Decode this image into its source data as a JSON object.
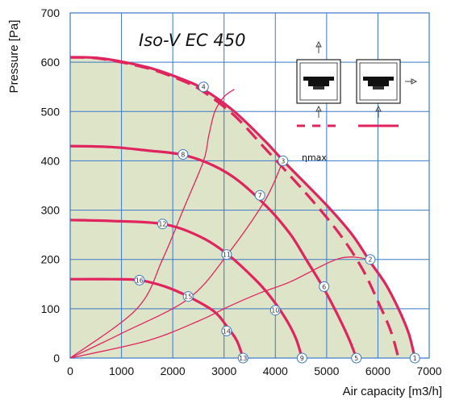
{
  "chart_data": {
    "type": "line",
    "title": "Iso-V EC 450",
    "xlabel": "Air capacity [m3/h]",
    "ylabel": "Pressure [Pa]",
    "xlim": [
      0,
      7000
    ],
    "ylim": [
      0,
      700
    ],
    "xticks": [
      0,
      1000,
      2000,
      3000,
      4000,
      5000,
      6000,
      7000
    ],
    "yticks": [
      0,
      100,
      200,
      300,
      400,
      500,
      600,
      700
    ],
    "grid": true,
    "colors": {
      "curve": "#e0245e",
      "area_fill": "#dee4c8",
      "grid": "#3a78c8",
      "point_fill": "#ffffff",
      "point_stroke": "#3a78c8"
    },
    "annotations": {
      "eta_max": "ηmax"
    },
    "fan_curves": [
      {
        "style": "solid",
        "points": [
          [
            0,
            610
          ],
          [
            600,
            608
          ],
          [
            1500,
            590
          ],
          [
            2200,
            565
          ],
          [
            2600,
            545
          ],
          [
            3200,
            500
          ],
          [
            3800,
            440
          ],
          [
            4200,
            395
          ],
          [
            5000,
            310
          ],
          [
            5500,
            250
          ],
          [
            5850,
            195
          ],
          [
            6150,
            150
          ],
          [
            6400,
            100
          ],
          [
            6600,
            50
          ],
          [
            6720,
            0
          ]
        ]
      },
      {
        "style": "dashed",
        "points": [
          [
            0,
            610
          ],
          [
            600,
            607
          ],
          [
            1500,
            588
          ],
          [
            2200,
            562
          ],
          [
            2600,
            540
          ],
          [
            3200,
            492
          ],
          [
            3800,
            425
          ],
          [
            4200,
            380
          ],
          [
            4800,
            310
          ],
          [
            5300,
            245
          ],
          [
            5700,
            180
          ],
          [
            6000,
            115
          ],
          [
            6250,
            55
          ],
          [
            6400,
            0
          ]
        ]
      },
      {
        "style": "solid",
        "points": [
          [
            0,
            430
          ],
          [
            800,
            428
          ],
          [
            1500,
            421
          ],
          [
            2200,
            412
          ],
          [
            2800,
            390
          ],
          [
            3300,
            358
          ],
          [
            3900,
            300
          ],
          [
            4300,
            250
          ],
          [
            4600,
            200
          ],
          [
            4950,
            140
          ],
          [
            5250,
            80
          ],
          [
            5450,
            35
          ],
          [
            5580,
            0
          ]
        ]
      },
      {
        "style": "solid",
        "points": [
          [
            0,
            280
          ],
          [
            800,
            278
          ],
          [
            1800,
            272
          ],
          [
            2500,
            248
          ],
          [
            3050,
            212
          ],
          [
            3600,
            160
          ],
          [
            3900,
            125
          ],
          [
            4200,
            80
          ],
          [
            4400,
            40
          ],
          [
            4520,
            0
          ]
        ]
      },
      {
        "style": "solid",
        "points": [
          [
            0,
            160
          ],
          [
            800,
            160
          ],
          [
            1350,
            158
          ],
          [
            1850,
            145
          ],
          [
            2300,
            125
          ],
          [
            2800,
            95
          ],
          [
            3050,
            65
          ],
          [
            3250,
            35
          ],
          [
            3370,
            0
          ]
        ]
      }
    ],
    "system_curves": [
      {
        "points": [
          [
            0,
            0
          ],
          [
            1300,
            100
          ],
          [
            1800,
            200
          ],
          [
            2200,
            300
          ],
          [
            2600,
            400
          ],
          [
            2700,
            450
          ],
          [
            2820,
            500
          ],
          [
            3000,
            530
          ],
          [
            3200,
            545
          ]
        ]
      },
      {
        "points": [
          [
            0,
            0
          ],
          [
            1000,
            50
          ],
          [
            2300,
            120
          ],
          [
            3080,
            212
          ],
          [
            3800,
            320
          ],
          [
            4150,
            400
          ]
        ]
      },
      {
        "points": [
          [
            0,
            0
          ],
          [
            1500,
            35
          ],
          [
            2500,
            75
          ],
          [
            3100,
            105
          ],
          [
            3700,
            132
          ],
          [
            4300,
            155
          ],
          [
            5250,
            202
          ],
          [
            5850,
            200
          ]
        ]
      }
    ],
    "points": [
      {
        "label": "1",
        "x": 6720,
        "y": 0
      },
      {
        "label": "2",
        "x": 5850,
        "y": 200
      },
      {
        "label": "3",
        "x": 4150,
        "y": 400
      },
      {
        "label": "4",
        "x": 2600,
        "y": 550
      },
      {
        "label": "5",
        "x": 5580,
        "y": 0
      },
      {
        "label": "6",
        "x": 4950,
        "y": 145
      },
      {
        "label": "7",
        "x": 3700,
        "y": 330
      },
      {
        "label": "8",
        "x": 2200,
        "y": 413
      },
      {
        "label": "9",
        "x": 4520,
        "y": 0
      },
      {
        "label": "10",
        "x": 4000,
        "y": 97
      },
      {
        "label": "11",
        "x": 3050,
        "y": 210
      },
      {
        "label": "12",
        "x": 1800,
        "y": 272
      },
      {
        "label": "13",
        "x": 3370,
        "y": 0
      },
      {
        "label": "14",
        "x": 3050,
        "y": 55
      },
      {
        "label": "15",
        "x": 2300,
        "y": 125
      },
      {
        "label": "16",
        "x": 1350,
        "y": 158
      }
    ]
  }
}
